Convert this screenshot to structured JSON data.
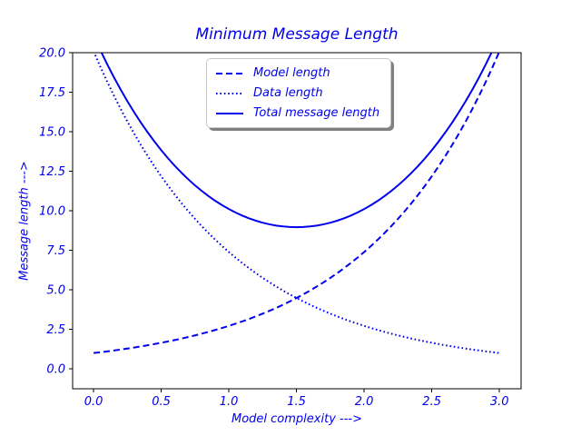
{
  "colors": {
    "line": "#0000ee",
    "text": "#0000ee",
    "spine": "#000000",
    "tick": "#000000",
    "legend_border": "#c8c8c8",
    "legend_shadow": "#555555",
    "background": "#ffffff"
  },
  "legend": {
    "items": [
      {
        "label": "Model length",
        "style": "dashed"
      },
      {
        "label": "Data length",
        "style": "dotted"
      },
      {
        "label": "Total message length",
        "style": "solid"
      }
    ]
  },
  "chart_data": {
    "type": "line",
    "title": "Minimum Message Length",
    "xlabel": "Model complexity --->",
    "ylabel": "Message length --->",
    "xlim": [
      -0.155,
      3.16
    ],
    "ylim": [
      -1.26,
      20.0
    ],
    "xticks": [
      0.0,
      0.5,
      1.0,
      1.5,
      2.0,
      2.5,
      3.0
    ],
    "xtick_labels": [
      "0.0",
      "0.5",
      "1.0",
      "1.5",
      "2.0",
      "2.5",
      "3.0"
    ],
    "yticks": [
      0.0,
      2.5,
      5.0,
      7.5,
      10.0,
      12.5,
      15.0,
      17.5,
      20.0
    ],
    "ytick_labels": [
      "0.0",
      "2.5",
      "5.0",
      "7.5",
      "10.0",
      "12.5",
      "15.0",
      "17.5",
      "20.0"
    ],
    "grid": false,
    "legend_position": "upper left inside, shadowed fancybox",
    "x": [
      0,
      0.05,
      0.1,
      0.15,
      0.2,
      0.25,
      0.3,
      0.35,
      0.4,
      0.45,
      0.5,
      0.55,
      0.6,
      0.65,
      0.7,
      0.75,
      0.8,
      0.85,
      0.9,
      0.95,
      1,
      1.05,
      1.1,
      1.15,
      1.2,
      1.25,
      1.3,
      1.35,
      1.4,
      1.45,
      1.5,
      1.55,
      1.6,
      1.65,
      1.7,
      1.75,
      1.8,
      1.85,
      1.9,
      1.95,
      2,
      2.05,
      2.1,
      2.15,
      2.2,
      2.25,
      2.3,
      2.35,
      2.4,
      2.45,
      2.5,
      2.55,
      2.6,
      2.65,
      2.7,
      2.75,
      2.8,
      2.85,
      2.9,
      2.95,
      3
    ],
    "series": [
      {
        "name": "Model length",
        "style": "dashed",
        "values": [
          1,
          1.051,
          1.105,
          1.162,
          1.221,
          1.284,
          1.35,
          1.419,
          1.492,
          1.568,
          1.649,
          1.733,
          1.822,
          1.916,
          2.014,
          2.117,
          2.226,
          2.34,
          2.46,
          2.586,
          2.718,
          2.858,
          3.004,
          3.158,
          3.32,
          3.49,
          3.669,
          3.857,
          4.055,
          4.263,
          4.482,
          4.711,
          4.953,
          5.207,
          5.474,
          5.755,
          6.05,
          6.36,
          6.686,
          7.029,
          7.389,
          7.768,
          8.166,
          8.585,
          9.025,
          9.488,
          9.974,
          10.486,
          11.023,
          11.588,
          12.182,
          12.807,
          13.464,
          14.154,
          14.88,
          15.643,
          16.445,
          17.288,
          18.174,
          19.106,
          20.086
        ]
      },
      {
        "name": "Data length",
        "style": "dotted",
        "values": [
          20.086,
          19.106,
          18.174,
          17.288,
          16.445,
          15.643,
          14.88,
          14.154,
          13.464,
          12.807,
          12.182,
          11.588,
          11.023,
          10.486,
          9.974,
          9.488,
          9.025,
          8.585,
          8.166,
          7.768,
          7.389,
          7.029,
          6.686,
          6.36,
          6.05,
          5.755,
          5.474,
          5.207,
          4.953,
          4.711,
          4.482,
          4.263,
          4.055,
          3.857,
          3.669,
          3.49,
          3.32,
          3.158,
          3.004,
          2.858,
          2.718,
          2.586,
          2.46,
          2.34,
          2.226,
          2.117,
          2.014,
          1.916,
          1.822,
          1.733,
          1.649,
          1.568,
          1.492,
          1.419,
          1.35,
          1.284,
          1.221,
          1.162,
          1.105,
          1.051,
          1
        ]
      },
      {
        "name": "Total message length",
        "style": "solid",
        "values": [
          21.086,
          20.157,
          19.279,
          18.45,
          17.666,
          16.927,
          16.23,
          15.573,
          14.956,
          14.375,
          13.831,
          13.321,
          12.845,
          12.402,
          11.988,
          11.605,
          11.251,
          10.925,
          10.626,
          10.354,
          10.107,
          9.887,
          9.69,
          9.518,
          9.37,
          9.245,
          9.143,
          9.064,
          9.008,
          8.974,
          8.964,
          8.974,
          9.008,
          9.064,
          9.143,
          9.245,
          9.37,
          9.518,
          9.69,
          9.887,
          10.107,
          10.354,
          10.626,
          10.925,
          11.251,
          11.605,
          11.988,
          12.402,
          12.845,
          13.321,
          13.831,
          14.375,
          14.956,
          15.573,
          16.23,
          16.927,
          17.666,
          18.45,
          19.279,
          20.157,
          21.086
        ]
      }
    ]
  }
}
